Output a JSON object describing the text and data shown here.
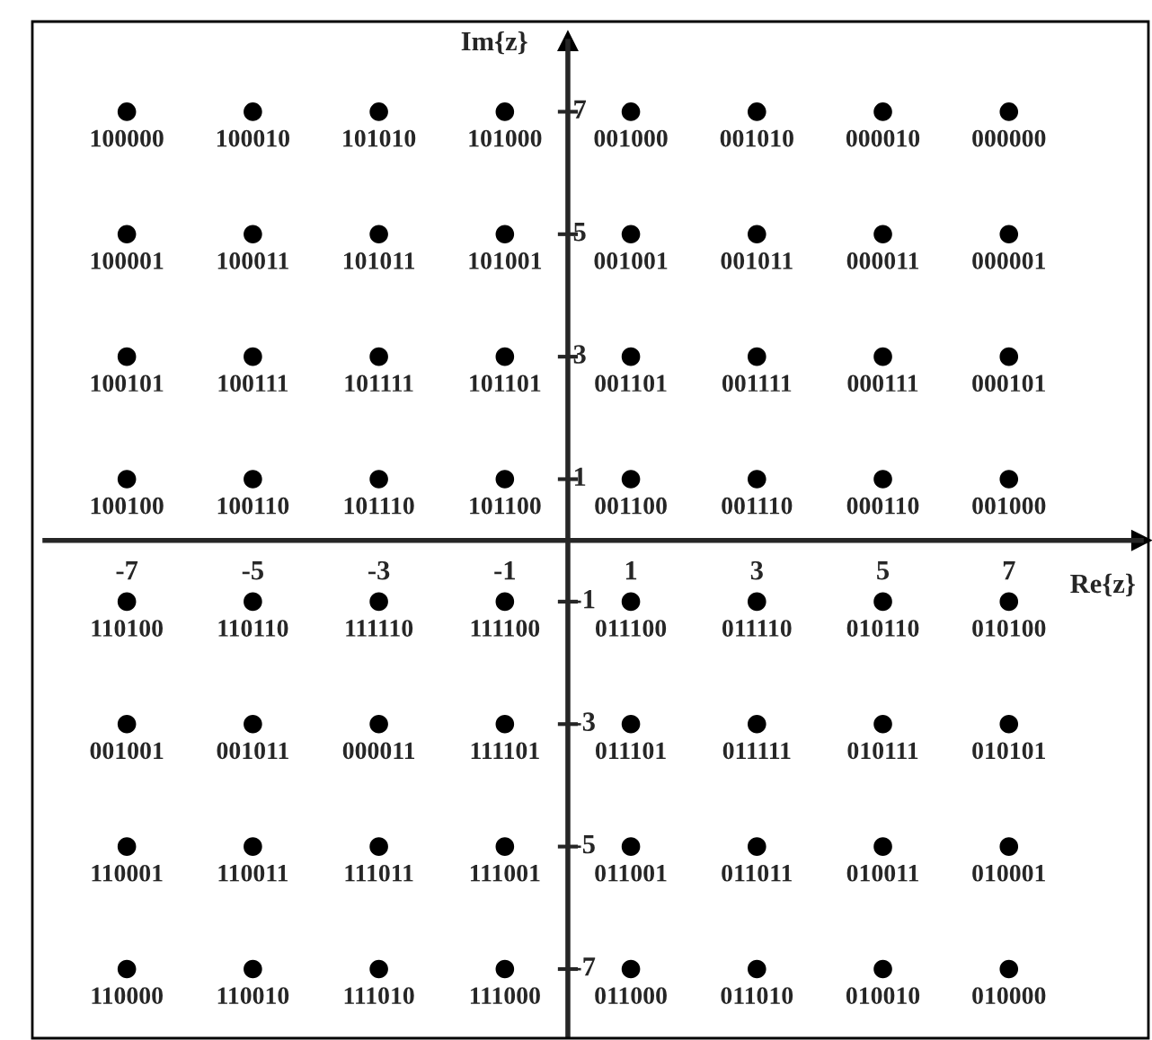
{
  "chart_data": {
    "type": "scatter",
    "xlabel": "Re{z}",
    "ylabel": "Im{z}",
    "xlim": [
      -8.3,
      9.1
    ],
    "ylim": [
      -8.1,
      8.15
    ],
    "xticks": [
      -7,
      -5,
      -3,
      -1,
      1,
      3,
      5,
      7
    ],
    "yticks": [
      -7,
      -5,
      -3,
      -1,
      1,
      3,
      5,
      7
    ],
    "grid": false,
    "legend": false,
    "marker": "circle",
    "series": [
      {
        "color": "#000000",
        "x": [
          -7,
          -5,
          -3,
          -1,
          1,
          3,
          5,
          7,
          -7,
          -5,
          -3,
          -1,
          1,
          3,
          5,
          7,
          -7,
          -5,
          -3,
          -1,
          1,
          3,
          5,
          7,
          -7,
          -5,
          -3,
          -1,
          1,
          3,
          5,
          7,
          -7,
          -5,
          -3,
          -1,
          1,
          3,
          5,
          7,
          -7,
          -5,
          -3,
          -1,
          1,
          3,
          5,
          7,
          -7,
          -5,
          -3,
          -1,
          1,
          3,
          5,
          7,
          -7,
          -5,
          -3,
          -1,
          1,
          3,
          5,
          7
        ],
        "values": [
          7,
          7,
          7,
          7,
          7,
          7,
          7,
          7,
          5,
          5,
          5,
          5,
          5,
          5,
          5,
          5,
          3,
          3,
          3,
          3,
          3,
          3,
          3,
          3,
          1,
          1,
          1,
          1,
          1,
          1,
          1,
          1,
          -1,
          -1,
          -1,
          -1,
          -1,
          -1,
          -1,
          -1,
          -3,
          -3,
          -3,
          -3,
          -3,
          -3,
          -3,
          -3,
          -5,
          -5,
          -5,
          -5,
          -5,
          -5,
          -5,
          -5,
          -7,
          -7,
          -7,
          -7,
          -7,
          -7,
          -7,
          -7
        ]
      }
    ],
    "annotations": [
      {
        "text": "100000",
        "x": -7,
        "y": 7
      },
      {
        "text": "100010",
        "x": -5,
        "y": 7
      },
      {
        "text": "101010",
        "x": -3,
        "y": 7
      },
      {
        "text": "101000",
        "x": -1,
        "y": 7
      },
      {
        "text": "001000",
        "x": 1,
        "y": 7
      },
      {
        "text": "001010",
        "x": 3,
        "y": 7
      },
      {
        "text": "000010",
        "x": 5,
        "y": 7
      },
      {
        "text": "000000",
        "x": 7,
        "y": 7
      },
      {
        "text": "100001",
        "x": -7,
        "y": 5
      },
      {
        "text": "100011",
        "x": -5,
        "y": 5
      },
      {
        "text": "101011",
        "x": -3,
        "y": 5
      },
      {
        "text": "101001",
        "x": -1,
        "y": 5
      },
      {
        "text": "001001",
        "x": 1,
        "y": 5
      },
      {
        "text": "001011",
        "x": 3,
        "y": 5
      },
      {
        "text": "000011",
        "x": 5,
        "y": 5
      },
      {
        "text": "000001",
        "x": 7,
        "y": 5
      },
      {
        "text": "100101",
        "x": -7,
        "y": 3
      },
      {
        "text": "100111",
        "x": -5,
        "y": 3
      },
      {
        "text": "101111",
        "x": -3,
        "y": 3
      },
      {
        "text": "101101",
        "x": -1,
        "y": 3
      },
      {
        "text": "001101",
        "x": 1,
        "y": 3
      },
      {
        "text": "001111",
        "x": 3,
        "y": 3
      },
      {
        "text": "000111",
        "x": 5,
        "y": 3
      },
      {
        "text": "000101",
        "x": 7,
        "y": 3
      },
      {
        "text": "100100",
        "x": -7,
        "y": 1
      },
      {
        "text": "100110",
        "x": -5,
        "y": 1
      },
      {
        "text": "101110",
        "x": -3,
        "y": 1
      },
      {
        "text": "101100",
        "x": -1,
        "y": 1
      },
      {
        "text": "001100",
        "x": 1,
        "y": 1
      },
      {
        "text": "001110",
        "x": 3,
        "y": 1
      },
      {
        "text": "000110",
        "x": 5,
        "y": 1
      },
      {
        "text": "001000",
        "x": 7,
        "y": 1
      },
      {
        "text": "110100",
        "x": -7,
        "y": -1
      },
      {
        "text": "110110",
        "x": -5,
        "y": -1
      },
      {
        "text": "111110",
        "x": -3,
        "y": -1
      },
      {
        "text": "111100",
        "x": -1,
        "y": -1
      },
      {
        "text": "011100",
        "x": 1,
        "y": -1
      },
      {
        "text": "011110",
        "x": 3,
        "y": -1
      },
      {
        "text": "010110",
        "x": 5,
        "y": -1
      },
      {
        "text": "010100",
        "x": 7,
        "y": -1
      },
      {
        "text": "001001",
        "x": -7,
        "y": -3
      },
      {
        "text": "001011",
        "x": -5,
        "y": -3
      },
      {
        "text": "000011",
        "x": -3,
        "y": -3
      },
      {
        "text": "111101",
        "x": -1,
        "y": -3
      },
      {
        "text": "011101",
        "x": 1,
        "y": -3
      },
      {
        "text": "011111",
        "x": 3,
        "y": -3
      },
      {
        "text": "010111",
        "x": 5,
        "y": -3
      },
      {
        "text": "010101",
        "x": 7,
        "y": -3
      },
      {
        "text": "110001",
        "x": -7,
        "y": -5
      },
      {
        "text": "110011",
        "x": -5,
        "y": -5
      },
      {
        "text": "111011",
        "x": -3,
        "y": -5
      },
      {
        "text": "111001",
        "x": -1,
        "y": -5
      },
      {
        "text": "011001",
        "x": 1,
        "y": -5
      },
      {
        "text": "011011",
        "x": 3,
        "y": -5
      },
      {
        "text": "010011",
        "x": 5,
        "y": -5
      },
      {
        "text": "010001",
        "x": 7,
        "y": -5
      },
      {
        "text": "110000",
        "x": -7,
        "y": -7
      },
      {
        "text": "110010",
        "x": -5,
        "y": -7
      },
      {
        "text": "111010",
        "x": -3,
        "y": -7
      },
      {
        "text": "111000",
        "x": -1,
        "y": -7
      },
      {
        "text": "011000",
        "x": 1,
        "y": -7
      },
      {
        "text": "011010",
        "x": 3,
        "y": -7
      },
      {
        "text": "010010",
        "x": 5,
        "y": -7
      },
      {
        "text": "010000",
        "x": 7,
        "y": -7
      }
    ]
  }
}
